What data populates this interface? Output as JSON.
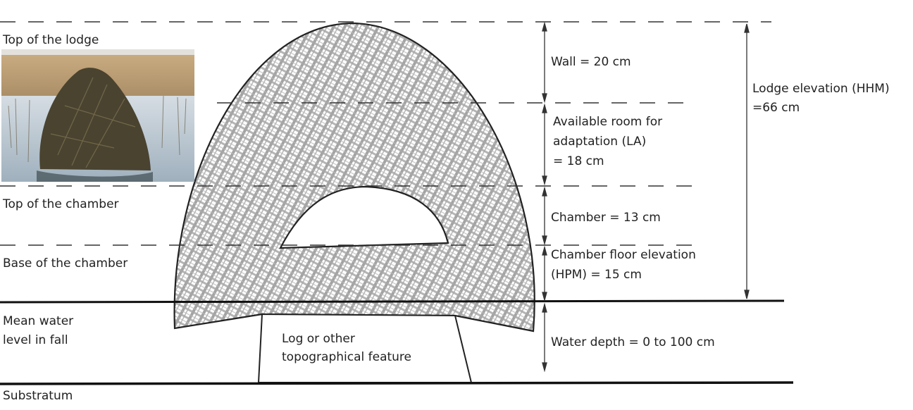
{
  "left_labels": {
    "top_of_lodge": "Top of the lodge",
    "top_of_chamber": "Top of the chamber",
    "base_of_chamber": "Base of the chamber",
    "mean_water_line1": "Mean water",
    "mean_water_line2": "level in fall",
    "substratum": "Substratum"
  },
  "measurements": {
    "wall": "Wall = 20 cm",
    "available_line1": "Available room for",
    "available_line2": "adaptation  (LA)",
    "available_line3": "= 18 cm",
    "chamber": "Chamber = 13 cm",
    "floor_line1": "Chamber floor elevation",
    "floor_line2": "(HPM) = 15 cm",
    "water_depth": "Water depth = 0 to 100 cm",
    "lodge_elev_line1": "Lodge elevation (HHM)",
    "lodge_elev_line2": "=66 cm"
  },
  "feature": {
    "line1": "Log or other",
    "line2": "topographical feature"
  },
  "photo": {
    "subject": "muskrat lodge photo"
  },
  "colors": {
    "ink": "#222222",
    "hatch": "#9a9a9a",
    "marsh_top": "#b99a72",
    "water": "#c7d2dc",
    "lodge_photo": "#4a4330"
  }
}
